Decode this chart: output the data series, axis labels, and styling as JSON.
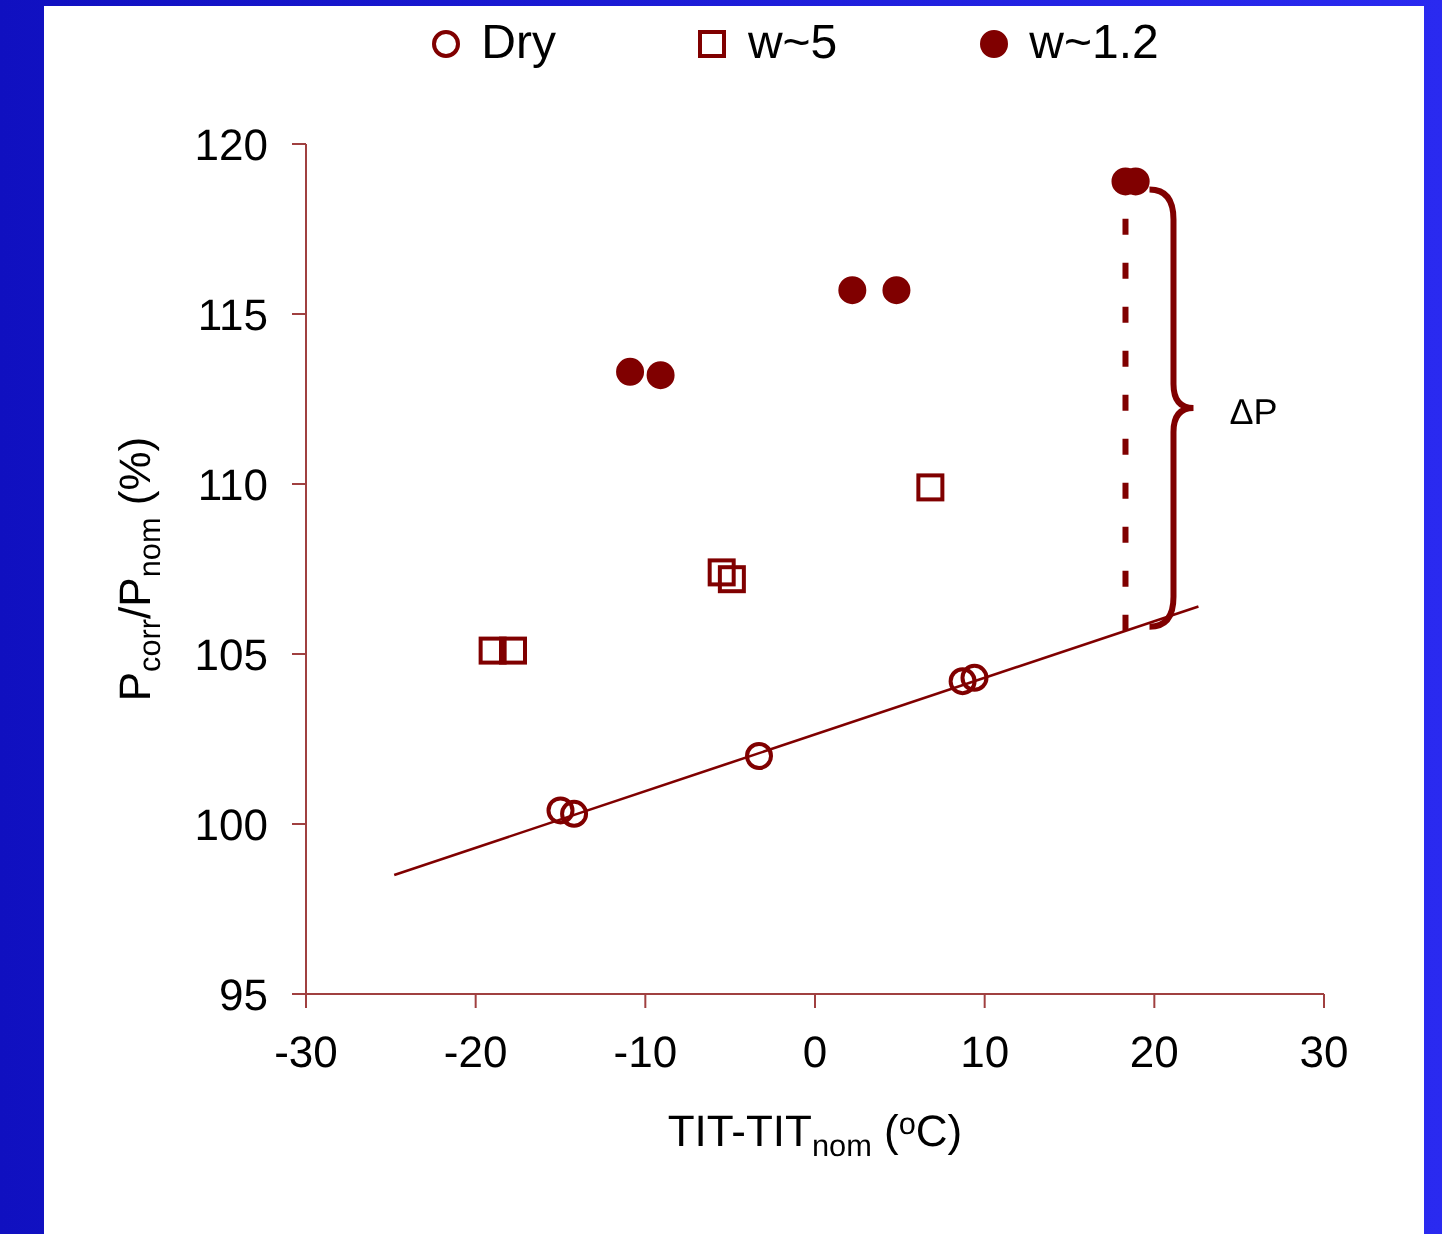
{
  "chart_data": {
    "type": "scatter",
    "xlabel": "TIT-TIT$_{nom}$ ($^{o}$C)",
    "ylabel": "P$_{corr}$/P$_{nom}$ (%)",
    "xlim": [
      -30,
      30
    ],
    "xticks": [
      -30,
      -20,
      -10,
      0,
      10,
      20,
      30
    ],
    "ylim": [
      95,
      120
    ],
    "yticks": [
      95,
      100,
      105,
      110,
      115,
      120
    ],
    "grid": false,
    "legend": "top",
    "series": [
      {
        "name": "Dry",
        "color": "#800000",
        "marker": "circle-open",
        "x": [
          -15.0,
          -14.2,
          -3.3,
          8.7,
          9.4
        ],
        "values": [
          100.4,
          100.3,
          102.0,
          104.2,
          104.3
        ]
      },
      {
        "name": "w~5",
        "color": "#800000",
        "marker": "square-open",
        "x": [
          -19.0,
          -17.8,
          -5.5,
          -4.9,
          6.8
        ],
        "values": [
          105.1,
          105.1,
          107.4,
          107.2,
          109.9
        ]
      },
      {
        "name": "w~1.2",
        "color": "#800000",
        "marker": "circle",
        "x": [
          -10.9,
          -9.1,
          2.2,
          4.8,
          18.3,
          18.9
        ],
        "values": [
          113.3,
          113.2,
          115.7,
          115.7,
          118.9,
          118.9
        ]
      },
      {
        "type": "line",
        "color": "#800000",
        "marker": "none",
        "x": [
          -24.8,
          22.6
        ],
        "values": [
          98.5,
          106.4
        ]
      }
    ],
    "ref_lines": [
      {
        "axis": "x",
        "value": 18.3,
        "color": "#800000",
        "line_style": "dashed"
      }
    ],
    "annotations": [
      "ΔP"
    ]
  }
}
